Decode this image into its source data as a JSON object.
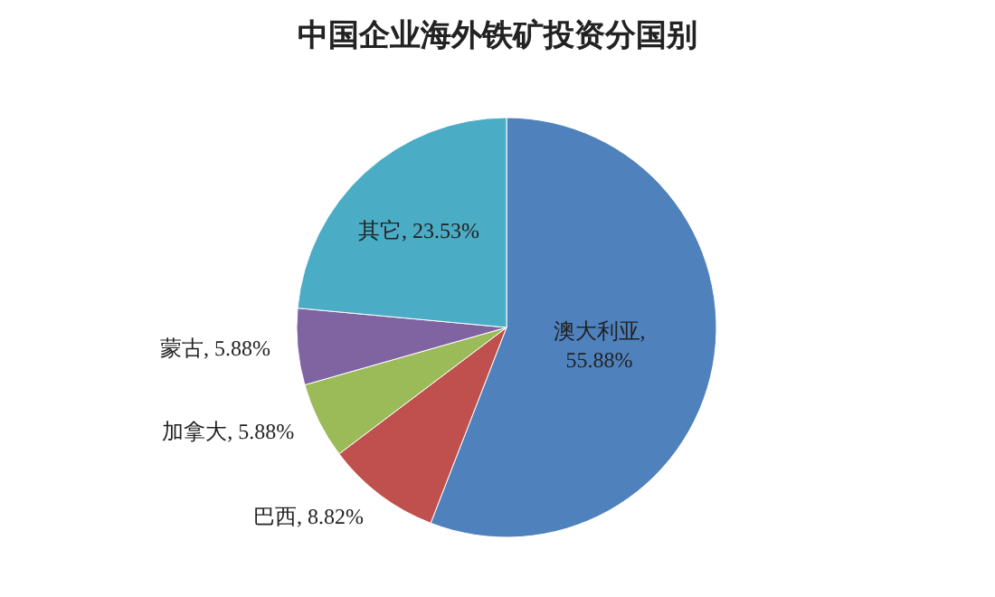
{
  "chart_data": {
    "type": "pie",
    "title": "中国企业海外铁矿投资分国别",
    "categories": [
      "澳大利亚",
      "巴西",
      "加拿大",
      "蒙古",
      "其它"
    ],
    "values": [
      55.88,
      8.82,
      5.88,
      5.88,
      23.53
    ],
    "colors": [
      "#4f81bd",
      "#c0504d",
      "#9bbb59",
      "#8064a2",
      "#4bacc6"
    ],
    "value_labels": [
      ", 55.88%",
      ", 8.82%",
      ", 5.88%",
      ", 5.88%",
      ", 23.53%"
    ],
    "legend": false
  }
}
